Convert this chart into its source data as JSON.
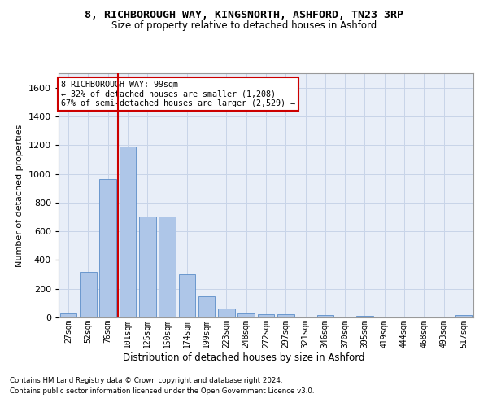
{
  "title": "8, RICHBOROUGH WAY, KINGSNORTH, ASHFORD, TN23 3RP",
  "subtitle": "Size of property relative to detached houses in Ashford",
  "xlabel": "Distribution of detached houses by size in Ashford",
  "ylabel": "Number of detached properties",
  "bar_labels": [
    "27sqm",
    "52sqm",
    "76sqm",
    "101sqm",
    "125sqm",
    "150sqm",
    "174sqm",
    "199sqm",
    "223sqm",
    "248sqm",
    "272sqm",
    "297sqm",
    "321sqm",
    "346sqm",
    "370sqm",
    "395sqm",
    "419sqm",
    "444sqm",
    "468sqm",
    "493sqm",
    "517sqm"
  ],
  "bar_values": [
    30,
    320,
    965,
    1190,
    700,
    700,
    300,
    150,
    65,
    30,
    20,
    20,
    0,
    15,
    0,
    10,
    0,
    0,
    0,
    0,
    15
  ],
  "bar_color": "#aec6e8",
  "bar_edge_color": "#5b8dc8",
  "vline_color": "#cc0000",
  "ylim": [
    0,
    1700
  ],
  "yticks": [
    0,
    200,
    400,
    600,
    800,
    1000,
    1200,
    1400,
    1600
  ],
  "annotation_title": "8 RICHBOROUGH WAY: 99sqm",
  "annotation_line1": "← 32% of detached houses are smaller (1,208)",
  "annotation_line2": "67% of semi-detached houses are larger (2,529) →",
  "annotation_box_color": "#cc0000",
  "grid_color": "#c8d4e8",
  "bg_color": "#e8eef8",
  "footer1": "Contains HM Land Registry data © Crown copyright and database right 2024.",
  "footer2": "Contains public sector information licensed under the Open Government Licence v3.0."
}
